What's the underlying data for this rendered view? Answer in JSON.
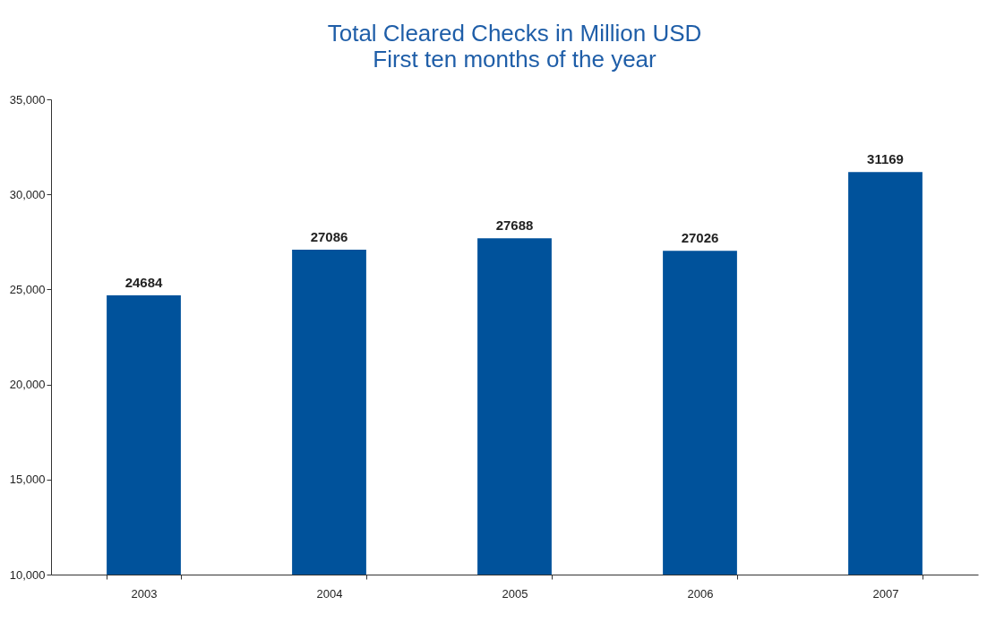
{
  "chart_data": {
    "type": "bar",
    "title": "Total Cleared Checks in Million USD",
    "subtitle": "First ten months of the year",
    "categories": [
      "2003",
      "2004",
      "2005",
      "2006",
      "2007"
    ],
    "values": [
      24684,
      27086,
      27688,
      27026,
      31169
    ],
    "color": "#00529b",
    "ylim": [
      10000,
      35000
    ],
    "yticks": [
      {
        "value": 10000,
        "label": "10,000"
      },
      {
        "value": 15000,
        "label": "15,000"
      },
      {
        "value": 20000,
        "label": "20,000"
      },
      {
        "value": 25000,
        "label": "25,000"
      },
      {
        "value": 30000,
        "label": "30,000"
      },
      {
        "value": 35000,
        "label": "35,000"
      }
    ],
    "data_labels": true,
    "grid": false
  }
}
